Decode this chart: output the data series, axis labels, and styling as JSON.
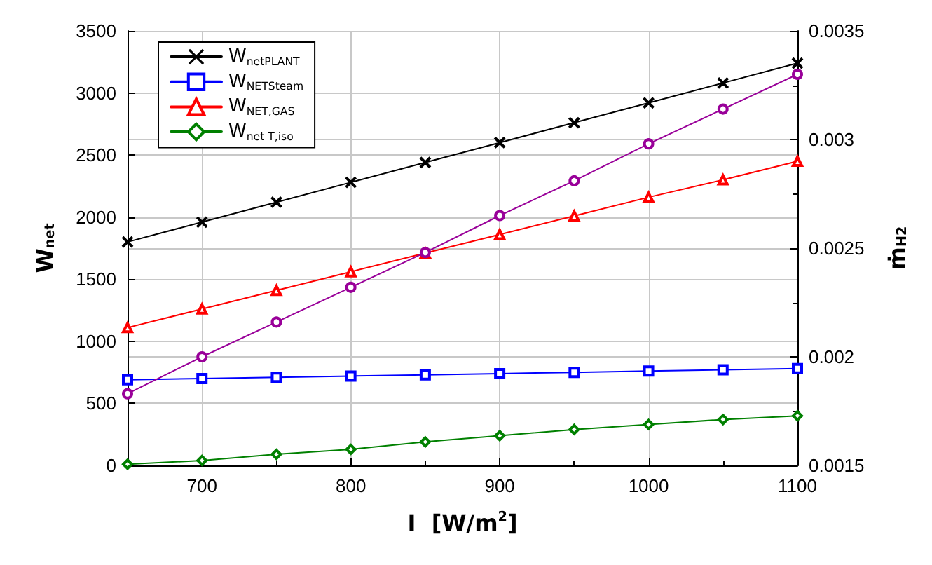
{
  "chart_data": {
    "type": "line",
    "xlabel": "I  [W/m$^{2}$]",
    "ylabel": "W$_{net}$",
    "y2label": "ṁ$_{H2}$",
    "x": [
      650,
      700,
      750,
      800,
      850,
      900,
      950,
      1000,
      1050,
      1100
    ],
    "xlim": [
      650,
      1100
    ],
    "xticks": [
      700,
      800,
      900,
      1000,
      1100
    ],
    "ylim": [
      0,
      3500
    ],
    "yticks": [
      0,
      500,
      1000,
      1500,
      2000,
      2500,
      3000,
      3500
    ],
    "y2lim": [
      0.0015,
      0.0035
    ],
    "y2ticks": [
      0.0015,
      0.002,
      0.0025,
      0.003,
      0.0035
    ],
    "grid": true,
    "legend": "top left",
    "series": [
      {
        "name": "W$_{netPLANT}$",
        "color": "#000000",
        "marker": "cross",
        "values": [
          1800,
          1960,
          2120,
          2280,
          2440,
          2600,
          2760,
          2920,
          3080,
          3240
        ]
      },
      {
        "name": "W$_{NETSteam}$",
        "color": "#0000ff",
        "marker": "square",
        "values": [
          690,
          700,
          710,
          720,
          730,
          740,
          750,
          760,
          770,
          780
        ]
      },
      {
        "name": "W$_{NET,GAS}$",
        "color": "#ff0000",
        "marker": "triangle",
        "values": [
          1110,
          1260,
          1410,
          1560,
          1710,
          1860,
          2010,
          2160,
          2300,
          2450
        ]
      },
      {
        "name": "W$_{net T,iso}$",
        "color": "#008000",
        "marker": "diamond",
        "values": [
          10,
          40,
          90,
          130,
          190,
          240,
          290,
          330,
          370,
          400
        ]
      },
      {
        "color": "#990099",
        "marker": "circle",
        "axis": "y2",
        "values": [
          0.00183,
          0.002,
          0.00216,
          0.00232,
          0.00248,
          0.00265,
          0.00281,
          0.00298,
          0.00314,
          0.0033
        ]
      }
    ]
  }
}
